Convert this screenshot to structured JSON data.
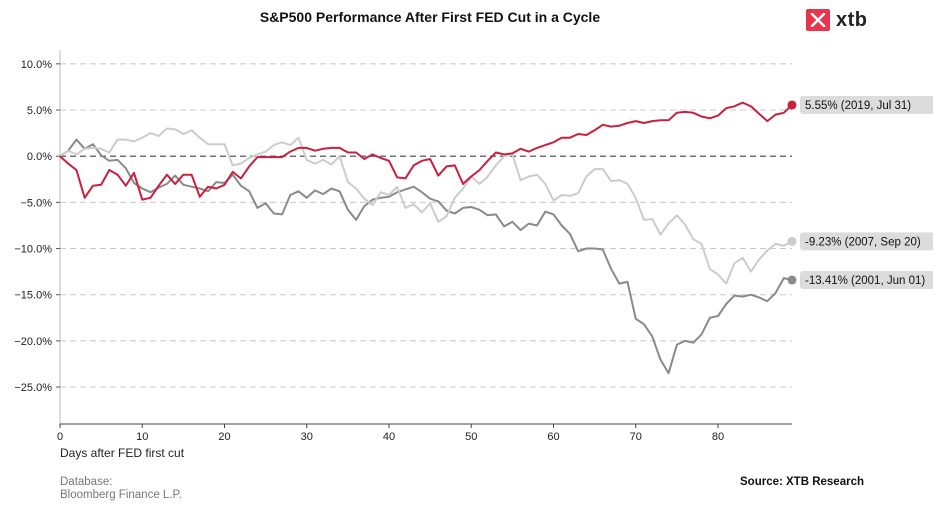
{
  "brand": {
    "name": "xtb",
    "logo_icon": "xtb-x-icon",
    "logo_color": "#e8344c"
  },
  "footer": {
    "database_label": "Database:",
    "database_value": "Bloomberg Finance L.P.",
    "source": "Source: XTB Research"
  },
  "chart_data": {
    "type": "line",
    "title": "S&P500 Performance After First FED Cut in a Cycle",
    "xlabel": "Days after FED first cut",
    "ylabel": "",
    "xlim": [
      0,
      89
    ],
    "ylim": [
      -29,
      11.5
    ],
    "x_ticks": [
      0,
      10,
      20,
      30,
      40,
      50,
      60,
      70,
      80
    ],
    "y_ticks": [
      10,
      5,
      0,
      -5,
      -10,
      -15,
      -20,
      -25
    ],
    "y_tick_labels": [
      "10.0%",
      "5.0%",
      "0.0%",
      "−5.0%",
      "−10.0%",
      "−15.0%",
      "−20.0%",
      "−25.0%"
    ],
    "grid": "horizontal-dashed",
    "zero_line": true,
    "x": [
      0,
      1,
      2,
      3,
      4,
      5,
      6,
      7,
      8,
      9,
      10,
      11,
      12,
      13,
      14,
      15,
      16,
      17,
      18,
      19,
      20,
      21,
      22,
      23,
      24,
      25,
      26,
      27,
      28,
      29,
      30,
      31,
      32,
      33,
      34,
      35,
      36,
      37,
      38,
      39,
      40,
      41,
      42,
      43,
      44,
      45,
      46,
      47,
      48,
      49,
      50,
      51,
      52,
      53,
      54,
      55,
      56,
      57,
      58,
      59,
      60,
      61,
      62,
      63,
      64,
      65,
      66,
      67,
      68,
      69,
      70,
      71,
      72,
      73,
      74,
      75,
      76,
      77,
      78,
      79,
      80,
      81,
      82,
      83,
      84,
      85,
      86,
      87,
      88,
      89
    ],
    "series": [
      {
        "color": "#c8203d",
        "end_label": "5.55% (2019, Jul 31)",
        "values": [
          0,
          -0.8,
          -1.5,
          -4.5,
          -3.2,
          -3.1,
          -1.5,
          -2.0,
          -3.2,
          -1.8,
          -4.7,
          -4.5,
          -3.2,
          -2.0,
          -3.0,
          -2.0,
          -2.0,
          -4.4,
          -3.3,
          -3.5,
          -3.1,
          -1.7,
          -2.4,
          -1.1,
          -0.1,
          -0.1,
          -0.1,
          -0.1,
          0.5,
          0.9,
          0.9,
          0.6,
          0.8,
          0.9,
          0.9,
          0.4,
          0.4,
          -0.3,
          0.2,
          -0.2,
          -0.5,
          -2.3,
          -2.4,
          -1.0,
          -0.5,
          -0.3,
          -2.1,
          -1.1,
          -1.0,
          -3.0,
          -2.2,
          -1.5,
          -0.5,
          0.4,
          0.2,
          0.3,
          0.8,
          0.5,
          0.9,
          1.2,
          1.5,
          2.0,
          2.0,
          2.4,
          2.3,
          2.8,
          3.4,
          3.2,
          3.3,
          3.6,
          3.8,
          3.6,
          3.8,
          3.9,
          3.9,
          4.7,
          4.8,
          4.7,
          4.3,
          4.1,
          4.4,
          5.2,
          5.4,
          5.8,
          5.4,
          4.6,
          3.8,
          4.5,
          4.7,
          5.55
        ]
      },
      {
        "color": "#cccccc",
        "end_label": "-9.23% (2007, Sep 20)",
        "values": [
          0,
          0.6,
          0.2,
          0.8,
          0.9,
          0.8,
          0.4,
          1.8,
          1.8,
          1.6,
          2.0,
          2.5,
          2.2,
          3.0,
          2.9,
          2.4,
          2.8,
          2.0,
          1.3,
          1.3,
          1.3,
          -1.0,
          -0.8,
          -0.2,
          0.2,
          0.5,
          1.2,
          1.5,
          1.2,
          2.0,
          -0.4,
          -0.8,
          -0.4,
          -0.9,
          0.0,
          -2.8,
          -3.5,
          -4.6,
          -5.3,
          -3.9,
          -4.2,
          -3.3,
          -5.6,
          -5.2,
          -6.1,
          -5.1,
          -7.1,
          -6.5,
          -4.5,
          -3.5,
          -2.2,
          -3.0,
          -2.2,
          -1.0,
          0.0,
          0.2,
          -2.6,
          -2.2,
          -2.0,
          -3.0,
          -4.8,
          -4.2,
          -4.3,
          -4.0,
          -2.2,
          -1.4,
          -1.4,
          -2.7,
          -2.6,
          -3.0,
          -4.5,
          -6.9,
          -6.8,
          -8.5,
          -7.3,
          -6.4,
          -7.4,
          -9.0,
          -9.5,
          -12.2,
          -12.8,
          -13.8,
          -11.6,
          -11.0,
          -12.5,
          -11.2,
          -10.2,
          -9.5,
          -9.7,
          -9.23
        ]
      },
      {
        "color": "#8a8a8a",
        "end_label": "-13.41% (2001, Jun 01)",
        "values": [
          0,
          0.6,
          1.8,
          0.8,
          1.3,
          0.1,
          -0.5,
          -0.4,
          -1.3,
          -2.9,
          -3.5,
          -3.9,
          -3.4,
          -3.0,
          -2.1,
          -3.1,
          -3.3,
          -3.5,
          -3.8,
          -2.8,
          -2.9,
          -2.0,
          -3.2,
          -3.8,
          -5.6,
          -5.1,
          -6.2,
          -6.3,
          -4.2,
          -3.8,
          -4.5,
          -3.7,
          -4.1,
          -3.5,
          -3.8,
          -5.8,
          -6.9,
          -5.4,
          -4.7,
          -4.5,
          -4.4,
          -3.9,
          -3.6,
          -3.3,
          -3.9,
          -4.6,
          -4.9,
          -5.9,
          -6.2,
          -5.6,
          -5.5,
          -5.8,
          -6.4,
          -6.3,
          -7.6,
          -7.1,
          -8.0,
          -7.3,
          -7.5,
          -6.0,
          -6.3,
          -7.5,
          -8.4,
          -10.3,
          -10.0,
          -10.0,
          -10.1,
          -12.2,
          -13.8,
          -13.6,
          -17.6,
          -18.2,
          -19.5,
          -22.0,
          -23.5,
          -20.4,
          -20.0,
          -20.2,
          -19.3,
          -17.5,
          -17.3,
          -16.0,
          -15.1,
          -15.2,
          -15.0,
          -15.3,
          -15.7,
          -14.8,
          -13.2,
          -13.41
        ]
      }
    ]
  }
}
